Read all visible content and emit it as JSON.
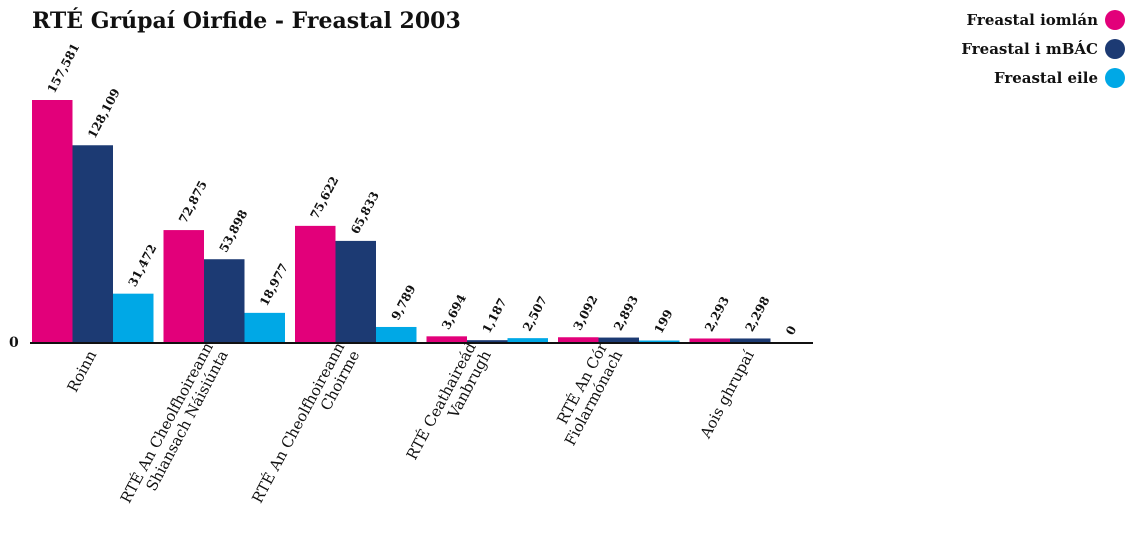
{
  "chart_data": {
    "type": "bar",
    "title": "RTÉ Grúpaí Oirfide - Freastal 2003",
    "categories": [
      [
        "Roinn"
      ],
      [
        "RTÉ An Cheolfhoireann",
        "Shiansach Náisiúnta"
      ],
      [
        "RTÉ An Cheolfhoireann",
        "Choirme"
      ],
      [
        "RTÉ Ceathaireád",
        "Vanbrugh"
      ],
      [
        "RTÉ An Cór",
        "Fiolarmónach"
      ],
      [
        "Aois ghrupaí"
      ]
    ],
    "series": [
      {
        "name": "Freastal iomlán",
        "color": "#e2007a",
        "values": [
          157581,
          72875,
          75622,
          3694,
          3092,
          2293
        ],
        "labels": [
          "157,581",
          "72,875",
          "75,622",
          "3,694",
          "3,092",
          "2,293"
        ]
      },
      {
        "name": "Freastal i mBÁC",
        "color": "#1c3a73",
        "values": [
          128109,
          53898,
          65833,
          1187,
          2893,
          2298
        ],
        "labels": [
          "128,109",
          "53,898",
          "65,833",
          "1,187",
          "2,893",
          "2,298"
        ]
      },
      {
        "name": "Freastal eile",
        "color": "#00a8e6",
        "values": [
          31472,
          18977,
          9789,
          2507,
          199,
          0
        ],
        "labels": [
          "31,472",
          "18,977",
          "9,789",
          "2,507",
          "199",
          "0"
        ]
      }
    ],
    "ylim": [
      0,
      157581
    ],
    "baseline_label": "0",
    "legend_position": "top-right",
    "grid": false
  }
}
